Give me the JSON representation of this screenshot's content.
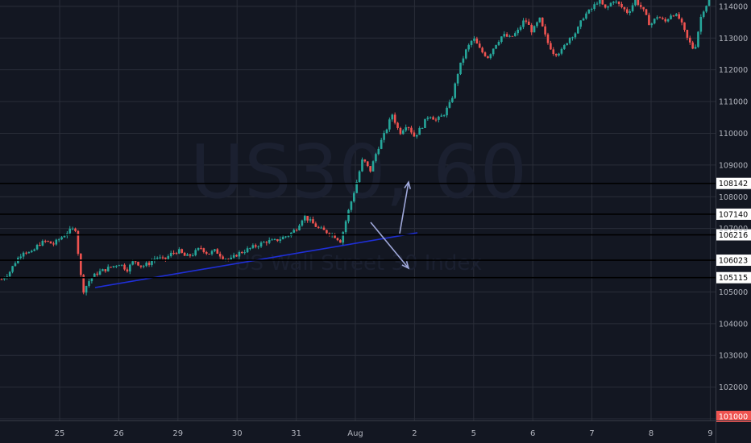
{
  "chart_data": {
    "type": "candlestick",
    "watermark": {
      "symbol": "US30, 60",
      "subtitle": "US Wall Street 30 Index"
    },
    "x_ticks": [
      "25",
      "26",
      "29",
      "30",
      "31",
      "Aug",
      "2",
      "5",
      "6",
      "7",
      "8",
      "9"
    ],
    "y_ticks": [
      "114000",
      "113000",
      "112000",
      "111000",
      "110000",
      "109000",
      "108000",
      "107000",
      "105000",
      "104000",
      "103000",
      "102000",
      "101000"
    ],
    "ylim": [
      10095,
      11420
    ],
    "price_levels": [
      {
        "label": "108142",
        "value": 10842
      },
      {
        "label": "107140",
        "value": 10745
      },
      {
        "label": "106216",
        "value": 10680
      },
      {
        "label": "106023",
        "value": 10600
      },
      {
        "label": "105115",
        "value": 10545
      }
    ],
    "current_price": "101000",
    "candle_path": [
      10540,
      10560,
      10600,
      10630,
      10620,
      10650,
      10660,
      10650,
      10670,
      10690,
      10700,
      10500,
      10540,
      10560,
      10570,
      10580,
      10590,
      10570,
      10600,
      10580,
      10590,
      10610,
      10600,
      10620,
      10630,
      10610,
      10620,
      10640,
      10620,
      10630,
      10610,
      10600,
      10620,
      10630,
      10640,
      10650,
      10660,
      10660,
      10670,
      10680,
      10700,
      10740,
      10720,
      10700,
      10690,
      10680,
      10660,
      10750,
      10830,
      10920,
      10880,
      10950,
      11000,
      11060,
      11000,
      11030,
      10990,
      11020,
      11060,
      11040,
      11060,
      11100,
      11200,
      11260,
      11300,
      11260,
      11240,
      11280,
      11310,
      11300,
      11320,
      11360,
      11320,
      11360,
      11290,
      11250,
      11260,
      11300,
      11320,
      11370,
      11390,
      11420,
      11390,
      11420,
      11400,
      11380,
      11420,
      11390,
      11340,
      11370,
      11350,
      11380,
      11360,
      11300,
      11260,
      11380,
      11420
    ]
  },
  "colors": {
    "background": "#131722",
    "grid": "#2a2e39",
    "up": "#26a69a",
    "down": "#ef5350",
    "axis_text": "#b2b5be",
    "trendline": "#1f2fd8",
    "arrow": "#9fa8da",
    "level_line": "#000000",
    "current_price_bg": "#ef5350"
  }
}
